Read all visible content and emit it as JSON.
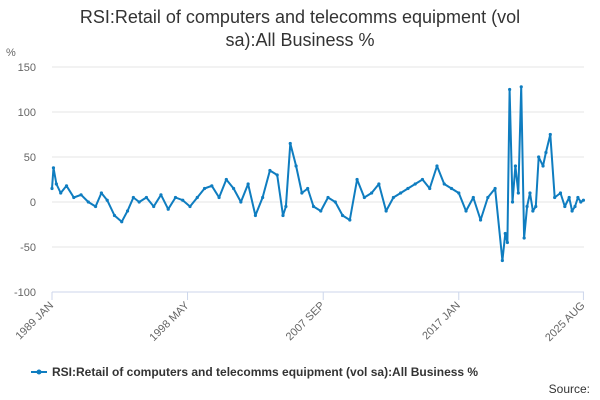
{
  "chart_data": {
    "type": "line",
    "title": "RSI:Retail of computers and telecomms equipment (vol sa):All Business %",
    "title_lines": [
      "RSI:Retail of computers and telecomms equipment (vol",
      "sa):All Business %"
    ],
    "ylabel": "%",
    "xlabel": "",
    "ylim": [
      -100,
      150
    ],
    "yticks": [
      -100,
      -50,
      0,
      50,
      100,
      150
    ],
    "xlim": [
      1989.0,
      2025.62
    ],
    "xticks": [
      {
        "label": "1989 JAN",
        "value": 1989.0
      },
      {
        "label": "1998 MAY",
        "value": 1998.33
      },
      {
        "label": "2007 SEP",
        "value": 2007.67
      },
      {
        "label": "2017 JAN",
        "value": 2017.0
      },
      {
        "label": "2025 AUG",
        "value": 2025.58
      }
    ],
    "series": [
      {
        "name": "RSI:Retail of computers and telecomms equipment (vol sa):All Business %",
        "color": "#0f7dc0",
        "x": [
          1989.0,
          1989.1,
          1989.3,
          1989.6,
          1990.0,
          1990.5,
          1991.0,
          1991.5,
          1992.0,
          1992.4,
          1992.8,
          1993.3,
          1993.8,
          1994.2,
          1994.6,
          1995.0,
          1995.5,
          1996.0,
          1996.5,
          1997.0,
          1997.5,
          1998.0,
          1998.5,
          1999.0,
          1999.5,
          2000.0,
          2000.5,
          2001.0,
          2001.5,
          2002.0,
          2002.5,
          2003.0,
          2003.5,
          2004.0,
          2004.5,
          2004.9,
          2005.1,
          2005.4,
          2005.8,
          2006.2,
          2006.6,
          2007.0,
          2007.5,
          2008.0,
          2008.5,
          2009.0,
          2009.5,
          2010.0,
          2010.5,
          2011.0,
          2011.5,
          2012.0,
          2012.5,
          2013.0,
          2013.5,
          2014.0,
          2014.5,
          2015.0,
          2015.5,
          2016.0,
          2016.5,
          2017.0,
          2017.5,
          2018.0,
          2018.5,
          2019.0,
          2019.5,
          2020.0,
          2020.2,
          2020.35,
          2020.5,
          2020.7,
          2020.9,
          2021.1,
          2021.3,
          2021.5,
          2021.7,
          2021.9,
          2022.1,
          2022.3,
          2022.5,
          2022.8,
          2023.0,
          2023.3,
          2023.6,
          2024.0,
          2024.3,
          2024.6,
          2024.8,
          2025.0,
          2025.2,
          2025.4,
          2025.58
        ],
        "values": [
          15,
          38,
          20,
          10,
          18,
          5,
          8,
          0,
          -5,
          10,
          2,
          -15,
          -22,
          -10,
          5,
          0,
          5,
          -5,
          8,
          -8,
          5,
          2,
          -5,
          5,
          15,
          18,
          5,
          25,
          15,
          0,
          20,
          -15,
          5,
          35,
          30,
          -15,
          -5,
          65,
          40,
          10,
          15,
          -5,
          -10,
          5,
          0,
          -15,
          -20,
          25,
          5,
          10,
          20,
          -10,
          5,
          10,
          15,
          20,
          25,
          15,
          40,
          20,
          15,
          10,
          -10,
          5,
          -20,
          5,
          15,
          -65,
          -35,
          -45,
          125,
          0,
          40,
          10,
          128,
          -40,
          -5,
          10,
          -10,
          -5,
          50,
          40,
          55,
          75,
          5,
          10,
          -5,
          5,
          -10,
          -5,
          5,
          0,
          2
        ]
      }
    ]
  },
  "legend": {
    "label": "RSI:Retail of computers and telecomms equipment (vol sa):All Business %"
  },
  "source": {
    "label": "Source:"
  }
}
